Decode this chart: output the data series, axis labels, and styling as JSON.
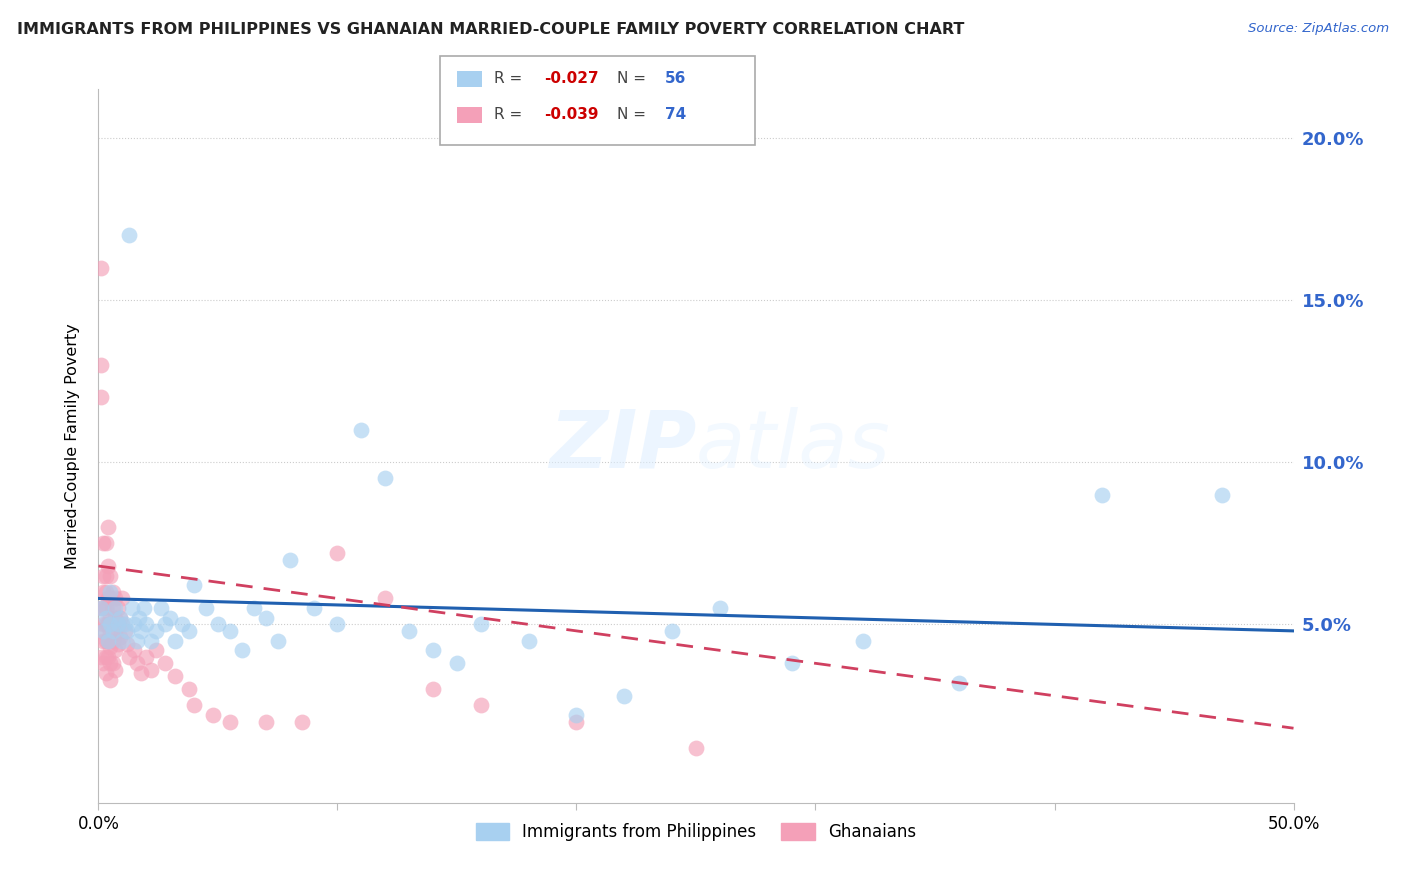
{
  "title": "IMMIGRANTS FROM PHILIPPINES VS GHANAIAN MARRIED-COUPLE FAMILY POVERTY CORRELATION CHART",
  "source": "Source: ZipAtlas.com",
  "ylabel": "Married-Couple Family Poverty",
  "legend_label1": "Immigrants from Philippines",
  "legend_label2": "Ghanaians",
  "R1": "-0.027",
  "N1": "56",
  "R2": "-0.039",
  "N2": "74",
  "color_blue": "#a8d0f0",
  "color_pink": "#f4a0b8",
  "line_blue": "#2060b0",
  "line_pink": "#d04060",
  "watermark_color": "#ddeeff",
  "xlim": [
    0.0,
    0.5
  ],
  "ylim": [
    -0.005,
    0.215
  ],
  "ytick_vals": [
    0.05,
    0.1,
    0.15,
    0.2
  ],
  "ytick_labels": [
    "5.0%",
    "10.0%",
    "15.0%",
    "20.0%"
  ],
  "philippines_x": [
    0.001,
    0.002,
    0.003,
    0.004,
    0.005,
    0.005,
    0.006,
    0.007,
    0.008,
    0.009,
    0.01,
    0.011,
    0.012,
    0.013,
    0.014,
    0.015,
    0.016,
    0.017,
    0.018,
    0.019,
    0.02,
    0.022,
    0.024,
    0.026,
    0.028,
    0.03,
    0.032,
    0.035,
    0.038,
    0.04,
    0.045,
    0.05,
    0.055,
    0.06,
    0.065,
    0.07,
    0.075,
    0.08,
    0.09,
    0.1,
    0.11,
    0.12,
    0.13,
    0.14,
    0.15,
    0.16,
    0.18,
    0.2,
    0.22,
    0.24,
    0.26,
    0.29,
    0.32,
    0.36,
    0.42,
    0.47
  ],
  "philippines_y": [
    0.055,
    0.048,
    0.052,
    0.045,
    0.05,
    0.06,
    0.048,
    0.055,
    0.05,
    0.052,
    0.045,
    0.05,
    0.048,
    0.17,
    0.055,
    0.05,
    0.045,
    0.052,
    0.048,
    0.055,
    0.05,
    0.045,
    0.048,
    0.055,
    0.05,
    0.052,
    0.045,
    0.05,
    0.048,
    0.062,
    0.055,
    0.05,
    0.048,
    0.042,
    0.055,
    0.052,
    0.045,
    0.07,
    0.055,
    0.05,
    0.11,
    0.095,
    0.048,
    0.042,
    0.038,
    0.05,
    0.045,
    0.022,
    0.028,
    0.048,
    0.055,
    0.038,
    0.045,
    0.032,
    0.09,
    0.09
  ],
  "ghanaians_x": [
    0.001,
    0.001,
    0.001,
    0.001,
    0.001,
    0.001,
    0.002,
    0.002,
    0.002,
    0.002,
    0.002,
    0.002,
    0.002,
    0.003,
    0.003,
    0.003,
    0.003,
    0.003,
    0.003,
    0.003,
    0.003,
    0.004,
    0.004,
    0.004,
    0.004,
    0.004,
    0.004,
    0.005,
    0.005,
    0.005,
    0.005,
    0.005,
    0.005,
    0.005,
    0.006,
    0.006,
    0.006,
    0.006,
    0.006,
    0.007,
    0.007,
    0.007,
    0.007,
    0.007,
    0.008,
    0.008,
    0.008,
    0.009,
    0.009,
    0.01,
    0.01,
    0.011,
    0.012,
    0.013,
    0.015,
    0.016,
    0.018,
    0.02,
    0.022,
    0.024,
    0.028,
    0.032,
    0.038,
    0.04,
    0.048,
    0.055,
    0.07,
    0.085,
    0.1,
    0.12,
    0.14,
    0.16,
    0.2,
    0.25
  ],
  "ghanaians_y": [
    0.16,
    0.13,
    0.12,
    0.055,
    0.048,
    0.04,
    0.075,
    0.065,
    0.06,
    0.055,
    0.05,
    0.045,
    0.038,
    0.075,
    0.065,
    0.06,
    0.055,
    0.05,
    0.045,
    0.04,
    0.035,
    0.08,
    0.068,
    0.058,
    0.05,
    0.045,
    0.04,
    0.065,
    0.058,
    0.052,
    0.048,
    0.043,
    0.038,
    0.033,
    0.06,
    0.055,
    0.05,
    0.045,
    0.038,
    0.058,
    0.052,
    0.047,
    0.042,
    0.036,
    0.055,
    0.05,
    0.044,
    0.052,
    0.046,
    0.058,
    0.05,
    0.048,
    0.044,
    0.04,
    0.042,
    0.038,
    0.035,
    0.04,
    0.036,
    0.042,
    0.038,
    0.034,
    0.03,
    0.025,
    0.022,
    0.02,
    0.02,
    0.02,
    0.072,
    0.058,
    0.03,
    0.025,
    0.02,
    0.012
  ],
  "blue_line_x": [
    0.0,
    0.5
  ],
  "blue_line_y": [
    0.058,
    0.048
  ],
  "pink_line_x": [
    0.0,
    0.5
  ],
  "pink_line_y": [
    0.068,
    0.018
  ]
}
